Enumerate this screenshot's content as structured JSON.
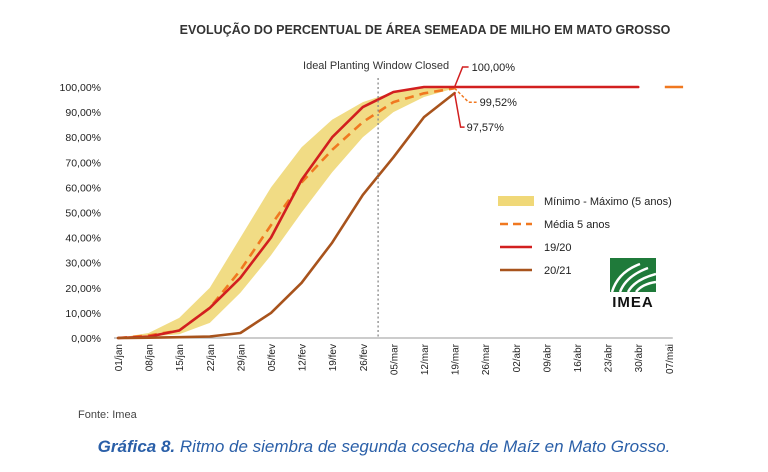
{
  "chart_data": {
    "type": "line",
    "title": "EVOLUÇÃO DO PERCENTUAL DE ÁREA SEMEADA DE MILHO EM MATO GROSSO",
    "categories": [
      "01/jan",
      "08/jan",
      "15/jan",
      "22/jan",
      "29/jan",
      "05/fev",
      "12/fev",
      "19/fev",
      "26/fev",
      "05/mar",
      "12/mar",
      "19/mar",
      "26/mar",
      "02/abr",
      "09/abr",
      "16/abr",
      "23/abr",
      "30/abr",
      "07/mai"
    ],
    "y_ticks": [
      "0,00%",
      "10,00%",
      "20,00%",
      "30,00%",
      "40,00%",
      "50,00%",
      "60,00%",
      "70,00%",
      "80,00%",
      "90,00%",
      "100,00%"
    ],
    "ylim": [
      0,
      100
    ],
    "band": {
      "name": "Mínimo - Máximo (5 anos)",
      "color": "#f0d878",
      "x": [
        0,
        1,
        2,
        3,
        4,
        5,
        6,
        7,
        8,
        9,
        10,
        11
      ],
      "min": [
        0,
        0.5,
        1.5,
        6,
        18,
        33,
        50,
        66,
        80,
        90,
        96,
        99.5
      ],
      "max": [
        0,
        2,
        8,
        20,
        40,
        60,
        76,
        87,
        94,
        98,
        99.5,
        100
      ]
    },
    "series": [
      {
        "name": "Média 5 anos",
        "color": "#f07820",
        "style": "dashed",
        "x": [
          0,
          1,
          2,
          3,
          4,
          5,
          6,
          7,
          8,
          9,
          10,
          10.5,
          11
        ],
        "values": [
          0,
          1,
          3,
          12,
          27,
          45,
          62,
          75,
          86,
          94,
          97.5,
          98.5,
          99.52
        ]
      },
      {
        "name": "19/20",
        "color": "#d21f1f",
        "style": "solid",
        "x": [
          0,
          1,
          2,
          3,
          4,
          5,
          6,
          7,
          8,
          9,
          10,
          11,
          12,
          13,
          14,
          15,
          16,
          17
        ],
        "values": [
          0,
          0.5,
          3,
          12,
          24,
          40,
          63,
          80,
          92,
          98,
          100,
          100,
          100,
          100,
          100,
          100,
          100,
          100
        ]
      },
      {
        "name": "20/21",
        "color": "#a8531c",
        "style": "solid",
        "x": [
          0,
          1,
          2,
          3,
          4,
          5,
          6,
          7,
          8,
          9,
          10,
          11
        ],
        "values": [
          0,
          0.1,
          0.3,
          0.6,
          2,
          10,
          22,
          38,
          57,
          72,
          88,
          97.57
        ]
      }
    ],
    "extension": {
      "x": [
        18,
        18.5
      ],
      "value": 100,
      "color": "#f07820"
    },
    "vline": {
      "x": 8.5,
      "label": "Ideal Planting Window Closed"
    },
    "annotations": [
      {
        "text": "100,00%",
        "series": "19/20"
      },
      {
        "text": "99,52%",
        "series": "Média 5 anos"
      },
      {
        "text": "97,57%",
        "series": "20/21"
      }
    ],
    "legend_position": "right",
    "grid": false
  },
  "logo_text": "IMEA",
  "source": "Fonte: Imea",
  "caption": {
    "label": "Gráfica 8.",
    "text": " Ritmo de siembra de segunda cosecha de Maíz en Mato Grosso."
  }
}
